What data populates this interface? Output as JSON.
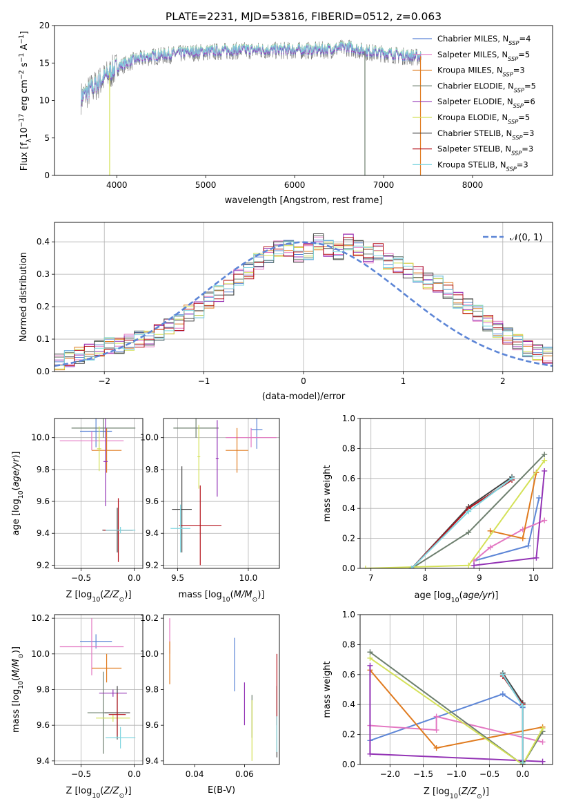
{
  "chart_data": [
    {
      "id": "spectrum",
      "type": "line",
      "title": "PLATE=2231, MJD=53816, FIBERID=0512, z=0.063",
      "xlabel": "wavelength [Angstrom, rest frame]",
      "ylabel": "Flux [f_λ10^-17 erg cm^-2 s^-1 A^-1]",
      "xlim": [
        3300,
        8900
      ],
      "ylim": [
        0,
        20
      ],
      "xticks": [
        4000,
        5000,
        6000,
        7000,
        8000
      ],
      "yticks": [
        0,
        5,
        10,
        15,
        20
      ],
      "grid": false,
      "legend_position": "top-right",
      "continuum": {
        "x": [
          3600,
          3700,
          3800,
          3900,
          4000,
          4200,
          4400,
          4600,
          4800,
          5000,
          5200,
          5400,
          5600,
          5800,
          6000,
          6200,
          6400,
          6600,
          6800,
          7000,
          7200,
          7400
        ],
        "y": [
          10.5,
          11.5,
          12.5,
          13.5,
          14.5,
          15.5,
          16.0,
          16.2,
          16.5,
          16.6,
          16.7,
          16.8,
          16.8,
          16.8,
          16.8,
          16.8,
          16.9,
          17.2,
          16.6,
          16.4,
          16.1,
          15.9
        ]
      },
      "series": [
        {
          "name": "Chabrier MILES, N_SSP=4",
          "color": "#5c85d6"
        },
        {
          "name": "Salpeter MILES, N_SSP=5",
          "color": "#e377c2"
        },
        {
          "name": "Kroupa MILES, N_SSP=3",
          "color": "#e07b1f"
        },
        {
          "name": "Chabrier ELODIE, N_SSP=5",
          "color": "#6d7f6e"
        },
        {
          "name": "Salpeter ELODIE, N_SSP=6",
          "color": "#9333b5"
        },
        {
          "name": "Kroupa ELODIE, N_SSP=5",
          "color": "#d4e157"
        },
        {
          "name": "Chabrier STELIB, N_SSP=3",
          "color": "#444444"
        },
        {
          "name": "Salpeter STELIB, N_SSP=3",
          "color": "#b5121b"
        },
        {
          "name": "Kroupa STELIB, N_SSP=3",
          "color": "#7fd6e0"
        }
      ]
    },
    {
      "id": "residuals",
      "type": "histogram",
      "xlabel": "(data-model)/error",
      "ylabel": "Normed distribution",
      "xlim": [
        -2.5,
        2.5
      ],
      "ylim": [
        0,
        0.46
      ],
      "xticks": [
        -2,
        -1,
        0,
        1,
        2
      ],
      "yticks": [
        0.0,
        0.1,
        0.2,
        0.3,
        0.4
      ],
      "grid": true,
      "bin_width": 0.1,
      "bin_start": -2.5,
      "histogram_y": [
        0.03,
        0.04,
        0.05,
        0.06,
        0.07,
        0.08,
        0.08,
        0.09,
        0.1,
        0.1,
        0.12,
        0.14,
        0.15,
        0.18,
        0.19,
        0.22,
        0.24,
        0.26,
        0.29,
        0.31,
        0.34,
        0.36,
        0.38,
        0.38,
        0.36,
        0.37,
        0.4,
        0.38,
        0.37,
        0.4,
        0.38,
        0.36,
        0.37,
        0.34,
        0.33,
        0.31,
        0.3,
        0.28,
        0.27,
        0.25,
        0.22,
        0.2,
        0.18,
        0.15,
        0.13,
        0.11,
        0.09,
        0.07,
        0.06,
        0.05
      ],
      "reference_curve": {
        "name": "𝒩(0, 1)",
        "color": "#5c85d6",
        "style": "dashed"
      },
      "legend_position": "top-right"
    },
    {
      "id": "z-age",
      "type": "scatter",
      "xlabel": "Z [log10(Z/Z⊙)]",
      "ylabel": "age  [log10(age/yr)]",
      "xlim": [
        -0.75,
        0.08
      ],
      "ylim": [
        9.18,
        10.12
      ],
      "xticks": [
        -0.5,
        0.0
      ],
      "yticks": [
        9.2,
        9.4,
        9.6,
        9.8,
        10.0
      ],
      "grid": true,
      "points": [
        {
          "x": -0.36,
          "y": 10.04,
          "xerr": 0.15,
          "yerr": 0.1,
          "series": 0
        },
        {
          "x": -0.4,
          "y": 9.98,
          "xerr": 0.3,
          "yerr": 0.06,
          "series": 1
        },
        {
          "x": -0.26,
          "y": 9.92,
          "xerr": 0.14,
          "yerr": 0.14,
          "series": 2
        },
        {
          "x": -0.29,
          "y": 10.06,
          "xerr": 0.3,
          "yerr": 0.06,
          "series": 3
        },
        {
          "x": -0.27,
          "y": 9.85,
          "xerr": 0.02,
          "yerr": 0.28,
          "series": 4
        },
        {
          "x": -0.33,
          "y": 9.93,
          "xerr": 0.02,
          "yerr": 0.14,
          "series": 5
        },
        {
          "x": -0.16,
          "y": 9.42,
          "xerr": 0.14,
          "yerr": 0.14,
          "series": 6
        },
        {
          "x": -0.15,
          "y": 9.42,
          "xerr": 0.14,
          "yerr": 0.2,
          "series": 7
        },
        {
          "x": -0.13,
          "y": 9.42,
          "xerr": 0.14,
          "yerr": 0.02,
          "series": 8
        }
      ]
    },
    {
      "id": "mass-age",
      "type": "scatter",
      "xlabel": "mass [log10(M/M⊙)]",
      "ylabel": "",
      "xlim": [
        9.4,
        10.22
      ],
      "ylim": [
        9.18,
        10.12
      ],
      "xticks": [
        9.5,
        10.0
      ],
      "yticks": [
        9.2,
        9.4,
        9.6,
        9.8,
        10.0
      ],
      "grid": true,
      "points": [
        {
          "x": 10.06,
          "y": 10.05,
          "xerr": 0.04,
          "yerr": 0.12,
          "series": 0
        },
        {
          "x": 10.02,
          "y": 10.0,
          "xerr": 0.18,
          "yerr": 0.06,
          "series": 1
        },
        {
          "x": 9.92,
          "y": 9.92,
          "xerr": 0.08,
          "yerr": 0.14,
          "series": 2
        },
        {
          "x": 9.63,
          "y": 10.06,
          "xerr": 0.16,
          "yerr": 0.06,
          "series": 3
        },
        {
          "x": 9.78,
          "y": 9.87,
          "xerr": 0.01,
          "yerr": 0.24,
          "series": 4
        },
        {
          "x": 9.65,
          "y": 9.88,
          "xerr": 0.01,
          "yerr": 0.2,
          "series": 5
        },
        {
          "x": 9.53,
          "y": 9.55,
          "xerr": 0.07,
          "yerr": 0.27,
          "series": 6
        },
        {
          "x": 9.66,
          "y": 9.45,
          "xerr": 0.15,
          "yerr": 0.25,
          "series": 7
        },
        {
          "x": 9.52,
          "y": 9.43,
          "xerr": 0.07,
          "yerr": 0.15,
          "series": 8
        }
      ]
    },
    {
      "id": "age-weight",
      "type": "line",
      "xlabel": "age  [log10(age/yr)]",
      "ylabel": "mass weight",
      "xlim": [
        6.8,
        10.35
      ],
      "ylim": [
        0,
        1
      ],
      "xticks": [
        7,
        8,
        9,
        10
      ],
      "yticks": [
        0.0,
        0.2,
        0.4,
        0.6,
        0.8,
        1.0
      ],
      "grid": true,
      "series": [
        {
          "x": [
            8.9,
            9.9,
            10.1
          ],
          "y": [
            0.05,
            0.15,
            0.47
          ],
          "color": "#5c85d6"
        },
        {
          "x": [
            8.9,
            9.2,
            9.8,
            10.2
          ],
          "y": [
            0.05,
            0.14,
            0.26,
            0.32
          ],
          "color": "#e377c2"
        },
        {
          "x": [
            9.2,
            9.8,
            10.05
          ],
          "y": [
            0.25,
            0.2,
            0.64
          ],
          "color": "#e07b1f"
        },
        {
          "x": [
            7.75,
            8.8,
            10.2
          ],
          "y": [
            0.0,
            0.24,
            0.76
          ],
          "color": "#6d7f6e"
        },
        {
          "x": [
            8.9,
            10.05,
            10.2
          ],
          "y": [
            0.02,
            0.07,
            0.65
          ],
          "color": "#9333b5"
        },
        {
          "x": [
            6.9,
            8.8,
            10.2
          ],
          "y": [
            0.0,
            0.02,
            0.72
          ],
          "color": "#d4e157"
        },
        {
          "x": [
            7.75,
            8.8,
            9.6
          ],
          "y": [
            0.0,
            0.41,
            0.61
          ],
          "color": "#444444"
        },
        {
          "x": [
            7.75,
            8.8,
            9.6
          ],
          "y": [
            0.0,
            0.4,
            0.59
          ],
          "color": "#b5121b"
        },
        {
          "x": [
            7.75,
            8.8,
            9.6
          ],
          "y": [
            0.0,
            0.38,
            0.6
          ],
          "color": "#7fd6e0"
        }
      ]
    },
    {
      "id": "z-mass",
      "type": "scatter",
      "xlabel": "Z [log10(Z/Z⊙)]",
      "ylabel": "mass [log10(M/M⊙)]",
      "xlim": [
        -0.75,
        0.08
      ],
      "ylim": [
        9.38,
        10.22
      ],
      "xticks": [
        -0.5,
        0.0
      ],
      "yticks": [
        9.4,
        9.6,
        9.8,
        10.0,
        10.2
      ],
      "grid": true,
      "points": [
        {
          "x": -0.36,
          "y": 10.07,
          "xerr": 0.15,
          "yerr": 0.04,
          "series": 0
        },
        {
          "x": -0.4,
          "y": 10.04,
          "xerr": 0.3,
          "yerr": 0.16,
          "series": 1
        },
        {
          "x": -0.26,
          "y": 9.92,
          "xerr": 0.14,
          "yerr": 0.08,
          "series": 2
        },
        {
          "x": -0.29,
          "y": 9.67,
          "xerr": 0.15,
          "yerr": 0.23,
          "series": 3
        },
        {
          "x": -0.2,
          "y": 9.78,
          "xerr": 0.13,
          "yerr": 0.02,
          "series": 4
        },
        {
          "x": -0.2,
          "y": 9.64,
          "xerr": 0.16,
          "yerr": 0.02,
          "series": 5
        },
        {
          "x": -0.16,
          "y": 9.67,
          "xerr": 0.12,
          "yerr": 0.15,
          "series": 6
        },
        {
          "x": -0.16,
          "y": 9.66,
          "xerr": 0.08,
          "yerr": 0.12,
          "series": 7
        },
        {
          "x": -0.13,
          "y": 9.53,
          "xerr": 0.14,
          "yerr": 0.06,
          "series": 8
        }
      ]
    },
    {
      "id": "ebv-mass",
      "type": "scatter",
      "xlabel": "E(B-V)",
      "ylabel": "",
      "xlim": [
        0.0275,
        0.074
      ],
      "ylim": [
        9.38,
        10.22
      ],
      "xticks": [
        0.04,
        0.06
      ],
      "yticks": [
        9.4,
        9.6,
        9.8,
        10.0,
        10.2
      ],
      "grid": false,
      "points": [
        {
          "x": 0.056,
          "y": 9.94,
          "yerr": 0.15,
          "series": 0
        },
        {
          "x": 0.03,
          "y": 10.1,
          "yerr": 0.1,
          "series": 1
        },
        {
          "x": 0.03,
          "y": 9.95,
          "yerr": 0.12,
          "series": 2
        },
        {
          "x": 0.063,
          "y": 9.65,
          "yerr": 0.12,
          "series": 3
        },
        {
          "x": 0.06,
          "y": 9.72,
          "yerr": 0.12,
          "series": 4
        },
        {
          "x": 0.063,
          "y": 9.57,
          "yerr": 0.17,
          "series": 5
        },
        {
          "x": 0.073,
          "y": 9.62,
          "yerr": 0.2,
          "series": 6
        },
        {
          "x": 0.073,
          "y": 9.8,
          "yerr": 0.2,
          "series": 7
        },
        {
          "x": 0.073,
          "y": 9.55,
          "yerr": 0.1,
          "series": 8
        }
      ]
    },
    {
      "id": "z-weight",
      "type": "line",
      "xlabel": "Z [log10(Z/Z⊙)]",
      "ylabel": "mass weight",
      "xlim": [
        -2.45,
        0.45
      ],
      "ylim": [
        0,
        1
      ],
      "xticks": [
        -2.0,
        -1.5,
        -1.0,
        -0.5,
        0.0
      ],
      "yticks": [
        0.0,
        0.2,
        0.4,
        0.6,
        0.8,
        1.0
      ],
      "grid": true,
      "series": [
        {
          "x": [
            -2.3,
            -0.3,
            0.0
          ],
          "y": [
            0.16,
            0.47,
            0.38
          ],
          "color": "#5c85d6"
        },
        {
          "x": [
            -2.3,
            -1.3,
            -1.3,
            0.3
          ],
          "y": [
            0.26,
            0.23,
            0.32,
            0.15
          ],
          "color": "#e377c2"
        },
        {
          "x": [
            -2.3,
            -1.3,
            0.3
          ],
          "y": [
            0.63,
            0.11,
            0.25
          ],
          "color": "#e07b1f"
        },
        {
          "x": [
            -2.3,
            0.0,
            0.3
          ],
          "y": [
            0.75,
            0.0,
            0.22
          ],
          "color": "#6d7f6e"
        },
        {
          "x": [
            -2.3,
            -2.3,
            0.3
          ],
          "y": [
            0.66,
            0.07,
            0.02
          ],
          "color": "#9333b5"
        },
        {
          "x": [
            -2.3,
            0.0,
            0.3
          ],
          "y": [
            0.71,
            0.0,
            0.24
          ],
          "color": "#d4e157"
        },
        {
          "x": [
            -0.3,
            0.0,
            0.0
          ],
          "y": [
            0.61,
            0.41,
            0.02
          ],
          "color": "#444444"
        },
        {
          "x": [
            -0.3,
            0.0,
            0.0
          ],
          "y": [
            0.59,
            0.4,
            0.0
          ],
          "color": "#b5121b"
        },
        {
          "x": [
            -0.3,
            0.0,
            0.0
          ],
          "y": [
            0.6,
            0.39,
            0.01
          ],
          "color": "#7fd6e0"
        }
      ]
    }
  ]
}
